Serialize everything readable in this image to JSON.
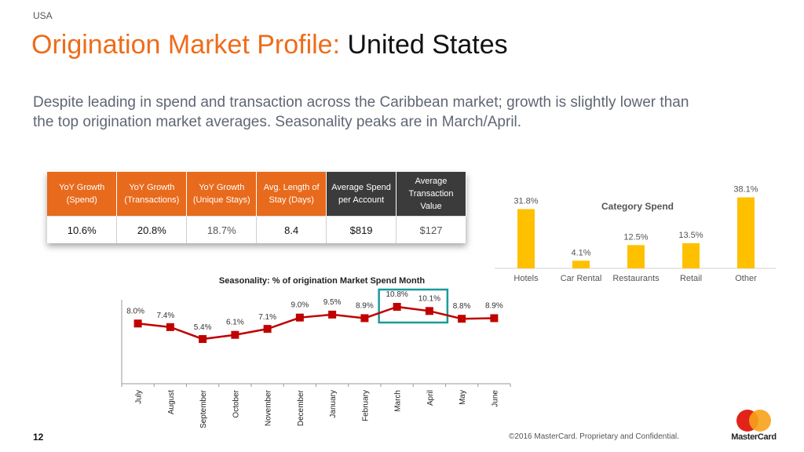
{
  "header": {
    "country": "USA",
    "title_orange": "Origination Market Profile:",
    "title_black": "United States"
  },
  "summary": "Despite leading in spend and transaction across the Caribbean market; growth is slightly lower than the top origination market averages. Seasonality peaks are in March/April.",
  "kpi_table": {
    "headers": [
      "YoY Growth (Spend)",
      "YoY Growth (Transactions)",
      "YoY Growth (Unique Stays)",
      "Avg. Length of Stay (Days)",
      "Average Spend per Account",
      "Average Transaction Value"
    ],
    "values": [
      "10.6%",
      "20.8%",
      "18.7%",
      "8.4",
      "$819",
      "$127"
    ]
  },
  "chart_data": [
    {
      "type": "bar",
      "title": "Category Spend",
      "categories": [
        "Hotels",
        "Car Rental",
        "Restaurants",
        "Retail",
        "Other"
      ],
      "values": [
        31.8,
        4.1,
        12.5,
        13.5,
        38.1
      ],
      "value_labels": [
        "31.8%",
        "4.1%",
        "12.5%",
        "13.5%",
        "38.1%"
      ],
      "ylim": [
        0,
        40
      ],
      "color": "#ffc000",
      "grid": false,
      "legend": "none"
    },
    {
      "type": "line",
      "title": "Seasonality: % of origination Market Spend Month",
      "categories": [
        "July",
        "August",
        "September",
        "October",
        "November",
        "December",
        "January",
        "February",
        "March",
        "April",
        "May",
        "June"
      ],
      "values": [
        8.0,
        7.4,
        5.4,
        6.1,
        7.1,
        9.0,
        9.5,
        8.9,
        10.8,
        10.1,
        8.8,
        8.9
      ],
      "value_labels": [
        "8.0%",
        "7.4%",
        "5.4%",
        "6.1%",
        "7.1%",
        "9.0%",
        "9.5%",
        "8.9%",
        "10.8%",
        "10.1%",
        "8.8%",
        "8.9%"
      ],
      "ylim": [
        0,
        12
      ],
      "color": "#c00000",
      "highlight": [
        "March",
        "April"
      ],
      "highlight_color": "#1a9a9a",
      "grid": false,
      "legend": "none"
    }
  ],
  "footer": {
    "page_number": "12",
    "copyright": "©2016 MasterCard. Proprietary and Confidential.",
    "logo_text": "MasterCard"
  },
  "colors": {
    "accent_orange": "#ee6c1a",
    "header_dark": "#3b3b3b",
    "bar_yellow": "#ffc000",
    "line_red": "#c00000",
    "highlight_teal": "#1a9a9a"
  }
}
